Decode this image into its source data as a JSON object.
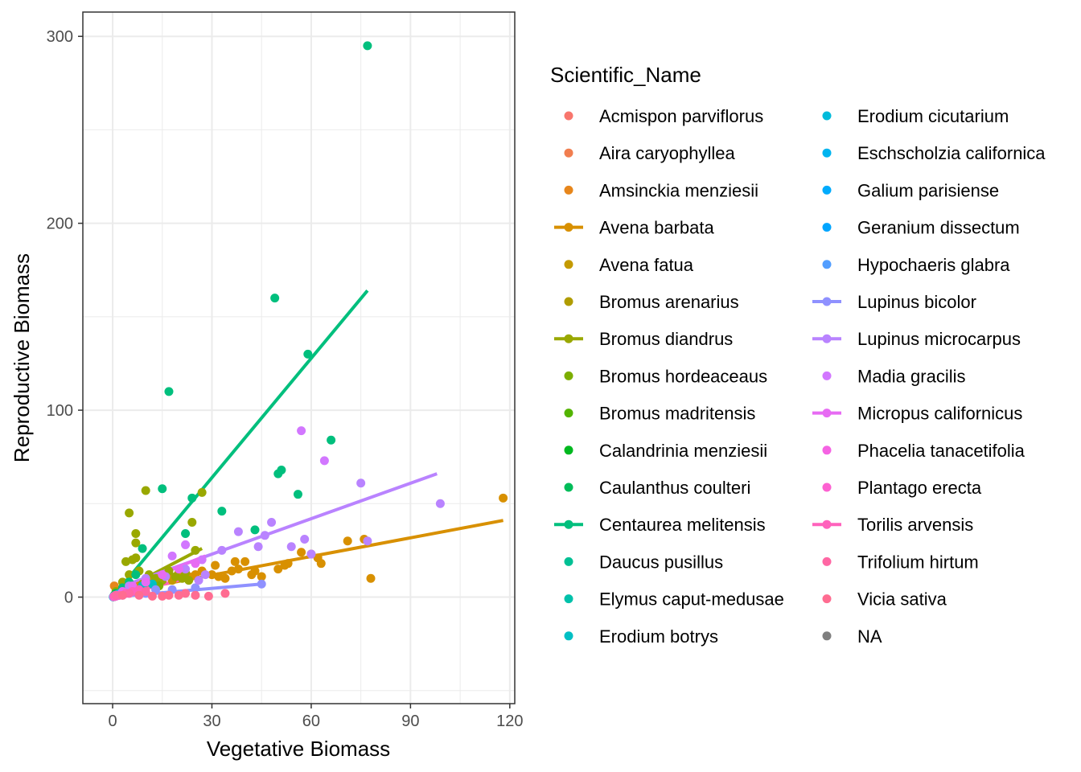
{
  "chart_data": {
    "type": "scatter",
    "title": "",
    "xlabel": "Vegetative Biomass",
    "ylabel": "Reproductive Biomass",
    "xlim": [
      -9,
      121.5
    ],
    "ylim": [
      -57,
      313
    ],
    "x_ticks": [
      0,
      30,
      60,
      90,
      120
    ],
    "y_ticks": [
      0,
      100,
      200,
      300
    ],
    "grid": true,
    "legend_title": "Scientific_Name",
    "legend_position": "right",
    "series": [
      {
        "name": "Acmispon parviflorus",
        "color": "#F8766D",
        "fit": null,
        "points": [
          [
            0.5,
            0.3
          ],
          [
            1.2,
            0.8
          ],
          [
            2,
            1.2
          ]
        ]
      },
      {
        "name": "Aira caryophyllea",
        "color": "#F17E4F",
        "fit": null,
        "points": [
          [
            0.3,
            0.2
          ],
          [
            0.8,
            0.5
          ]
        ]
      },
      {
        "name": "Amsinckia menziesii",
        "color": "#E7861B",
        "fit": null,
        "points": [
          [
            0.5,
            6
          ],
          [
            2,
            3
          ],
          [
            3,
            2
          ],
          [
            4,
            4
          ]
        ]
      },
      {
        "name": "Avena barbata",
        "color": "#D89000",
        "fit": [
          [
            0.5,
            2
          ],
          [
            118,
            41
          ]
        ],
        "points": [
          [
            1,
            2
          ],
          [
            3,
            3
          ],
          [
            5,
            5
          ],
          [
            8,
            6
          ],
          [
            10,
            8
          ],
          [
            12,
            9
          ],
          [
            15,
            10
          ],
          [
            17,
            12
          ],
          [
            20,
            13
          ],
          [
            23,
            11
          ],
          [
            25,
            12
          ],
          [
            27,
            14
          ],
          [
            30,
            12
          ],
          [
            31,
            17
          ],
          [
            32,
            11
          ],
          [
            34,
            10
          ],
          [
            36,
            14
          ],
          [
            37,
            19
          ],
          [
            38,
            15
          ],
          [
            40,
            19
          ],
          [
            42,
            12
          ],
          [
            43,
            14
          ],
          [
            45,
            11
          ],
          [
            50,
            15
          ],
          [
            52,
            17
          ],
          [
            53,
            18
          ],
          [
            57,
            24
          ],
          [
            60,
            23
          ],
          [
            62,
            21
          ],
          [
            63,
            18
          ],
          [
            71,
            30
          ],
          [
            76,
            31
          ],
          [
            78,
            10
          ],
          [
            118,
            53
          ]
        ]
      },
      {
        "name": "Avena fatua",
        "color": "#C49A00",
        "fit": null,
        "points": [
          [
            2,
            2
          ],
          [
            5,
            4
          ],
          [
            9,
            5
          ],
          [
            14,
            8
          ],
          [
            18,
            9
          ]
        ]
      },
      {
        "name": "Bromus arenarius",
        "color": "#B09C00",
        "fit": null,
        "points": [
          [
            1,
            1
          ],
          [
            3,
            3
          ],
          [
            6,
            5
          ]
        ]
      },
      {
        "name": "Bromus diandrus",
        "color": "#99A800",
        "fit": [
          [
            0,
            1
          ],
          [
            27,
            26
          ]
        ],
        "points": [
          [
            1,
            3
          ],
          [
            3,
            8
          ],
          [
            4,
            19
          ],
          [
            5,
            45
          ],
          [
            5,
            12
          ],
          [
            6,
            20
          ],
          [
            7,
            34
          ],
          [
            7,
            29
          ],
          [
            7,
            21
          ],
          [
            8,
            14
          ],
          [
            9,
            7
          ],
          [
            10,
            57
          ],
          [
            11,
            12
          ],
          [
            13,
            10
          ],
          [
            15,
            9
          ],
          [
            17,
            14
          ],
          [
            19,
            11
          ],
          [
            21,
            10
          ],
          [
            22,
            13
          ],
          [
            23,
            9
          ],
          [
            24,
            40
          ],
          [
            25,
            25
          ],
          [
            27,
            56
          ]
        ]
      },
      {
        "name": "Bromus hordeaceaus",
        "color": "#7CAE00",
        "fit": null,
        "points": [
          [
            1,
            1
          ],
          [
            2,
            2
          ],
          [
            4,
            3
          ],
          [
            6,
            4
          ],
          [
            9,
            5
          ],
          [
            14,
            6
          ]
        ]
      },
      {
        "name": "Bromus madritensis",
        "color": "#53B400",
        "fit": null,
        "points": [
          [
            1,
            1
          ],
          [
            3,
            2
          ],
          [
            5,
            3
          ]
        ]
      },
      {
        "name": "Calandrinia menziesii",
        "color": "#00B81F",
        "fit": null,
        "points": [
          [
            0.2,
            0.1
          ],
          [
            0.5,
            0.3
          ]
        ]
      },
      {
        "name": "Caulanthus coulteri",
        "color": "#00BC59",
        "fit": null,
        "points": [
          [
            1,
            2
          ],
          [
            3,
            4
          ]
        ]
      },
      {
        "name": "Centaurea melitensis",
        "color": "#00BF7D",
        "fit": [
          [
            0,
            0
          ],
          [
            77,
            164
          ]
        ],
        "points": [
          [
            0.5,
            1
          ],
          [
            3,
            5
          ],
          [
            5,
            8
          ],
          [
            7,
            12
          ],
          [
            9,
            26
          ],
          [
            15,
            58
          ],
          [
            17,
            110
          ],
          [
            22,
            34
          ],
          [
            24,
            53
          ],
          [
            33,
            46
          ],
          [
            43,
            36
          ],
          [
            49,
            160
          ],
          [
            50,
            66
          ],
          [
            51,
            68
          ],
          [
            56,
            55
          ],
          [
            59,
            130
          ],
          [
            66,
            84
          ],
          [
            77,
            295
          ]
        ]
      },
      {
        "name": "Daucus pusillus",
        "color": "#00C094",
        "fit": null,
        "points": [
          [
            1,
            1
          ],
          [
            2,
            2
          ],
          [
            4,
            3
          ]
        ]
      },
      {
        "name": "Elymus caput-medusae",
        "color": "#00C1AA",
        "fit": null,
        "points": [
          [
            2,
            2
          ],
          [
            5,
            3
          ],
          [
            8,
            4
          ]
        ]
      },
      {
        "name": "Erodium botrys",
        "color": "#00BFC4",
        "fit": null,
        "points": [
          [
            3,
            3
          ],
          [
            6,
            4
          ],
          [
            9,
            6
          ],
          [
            12,
            7
          ]
        ]
      },
      {
        "name": "Erodium cicutarium",
        "color": "#00BBDB",
        "fit": null,
        "points": [
          [
            1,
            1
          ],
          [
            3,
            2
          ]
        ]
      },
      {
        "name": "Eschscholzia californica",
        "color": "#00B4EF",
        "fit": null,
        "points": [
          [
            2,
            1
          ]
        ]
      },
      {
        "name": "Galium parisiense",
        "color": "#00ABFD",
        "fit": null,
        "points": [
          [
            0.2,
            0.1
          ]
        ]
      },
      {
        "name": "Geranium dissectum",
        "color": "#00A5FF",
        "fit": null,
        "points": [
          [
            0.5,
            0.5
          ],
          [
            1,
            0.8
          ]
        ]
      },
      {
        "name": "Hypochaeris glabra",
        "color": "#529EFF",
        "fit": null,
        "points": [
          [
            1,
            1
          ],
          [
            2,
            1.5
          ]
        ]
      },
      {
        "name": "Lupinus bicolor",
        "color": "#8F91FF",
        "fit": [
          [
            0,
            0
          ],
          [
            45,
            7
          ]
        ],
        "points": [
          [
            1,
            0.5
          ],
          [
            3,
            1
          ],
          [
            5,
            2
          ],
          [
            7,
            3
          ],
          [
            10,
            2
          ],
          [
            13,
            4
          ],
          [
            18,
            4
          ],
          [
            25,
            5
          ],
          [
            45,
            7
          ]
        ]
      },
      {
        "name": "Lupinus microcarpus",
        "color": "#B983FF",
        "fit": [
          [
            0,
            4
          ],
          [
            98,
            66
          ]
        ],
        "points": [
          [
            5,
            6
          ],
          [
            10,
            10
          ],
          [
            16,
            11
          ],
          [
            22,
            15
          ],
          [
            26,
            9
          ],
          [
            28,
            12
          ],
          [
            33,
            25
          ],
          [
            38,
            35
          ],
          [
            44,
            27
          ],
          [
            46,
            33
          ],
          [
            48,
            40
          ],
          [
            54,
            27
          ],
          [
            58,
            31
          ],
          [
            60,
            23
          ],
          [
            75,
            61
          ],
          [
            77,
            30
          ],
          [
            99,
            50
          ]
        ]
      },
      {
        "name": "Madia gracilis",
        "color": "#D277FF",
        "fit": null,
        "points": [
          [
            18,
            22
          ],
          [
            22,
            28
          ],
          [
            27,
            20
          ],
          [
            57,
            89
          ],
          [
            64,
            73
          ]
        ]
      },
      {
        "name": "Micropus californicus",
        "color": "#E76BF3",
        "fit": [
          [
            0,
            2
          ],
          [
            28,
            22
          ]
        ],
        "points": [
          [
            1,
            1
          ],
          [
            3,
            3
          ],
          [
            6,
            6
          ],
          [
            10,
            8
          ],
          [
            15,
            12
          ],
          [
            20,
            15
          ],
          [
            25,
            18
          ]
        ]
      },
      {
        "name": "Phacelia tanacetifolia",
        "color": "#F563E3",
        "fit": null,
        "points": [
          [
            1,
            1
          ],
          [
            4,
            2
          ]
        ]
      },
      {
        "name": "Plantago erecta",
        "color": "#FD61D1",
        "fit": null,
        "points": [
          [
            0.3,
            0.2
          ],
          [
            1,
            0.5
          ],
          [
            1.5,
            0.8
          ]
        ]
      },
      {
        "name": "Torilis arvensis",
        "color": "#FF62BC",
        "fit": [
          [
            0,
            0
          ],
          [
            20,
            9
          ]
        ],
        "points": [
          [
            0.5,
            0.5
          ],
          [
            2,
            1
          ],
          [
            4,
            2
          ],
          [
            6,
            3
          ],
          [
            8,
            4
          ]
        ]
      },
      {
        "name": "Trifolium hirtum",
        "color": "#FF67A4",
        "fit": null,
        "points": [
          [
            1,
            1
          ],
          [
            5,
            2
          ],
          [
            10,
            3
          ]
        ]
      },
      {
        "name": "Vicia sativa",
        "color": "#FF6C91",
        "fit": null,
        "points": [
          [
            3,
            1
          ],
          [
            8,
            1
          ],
          [
            12,
            0.5
          ],
          [
            15,
            0.5
          ],
          [
            17,
            1
          ],
          [
            20,
            1
          ],
          [
            22,
            2
          ],
          [
            25,
            1
          ],
          [
            29,
            0.5
          ],
          [
            34,
            2
          ]
        ]
      },
      {
        "name": "NA",
        "color": "#7F7F7F",
        "fit": null,
        "points": []
      }
    ]
  }
}
